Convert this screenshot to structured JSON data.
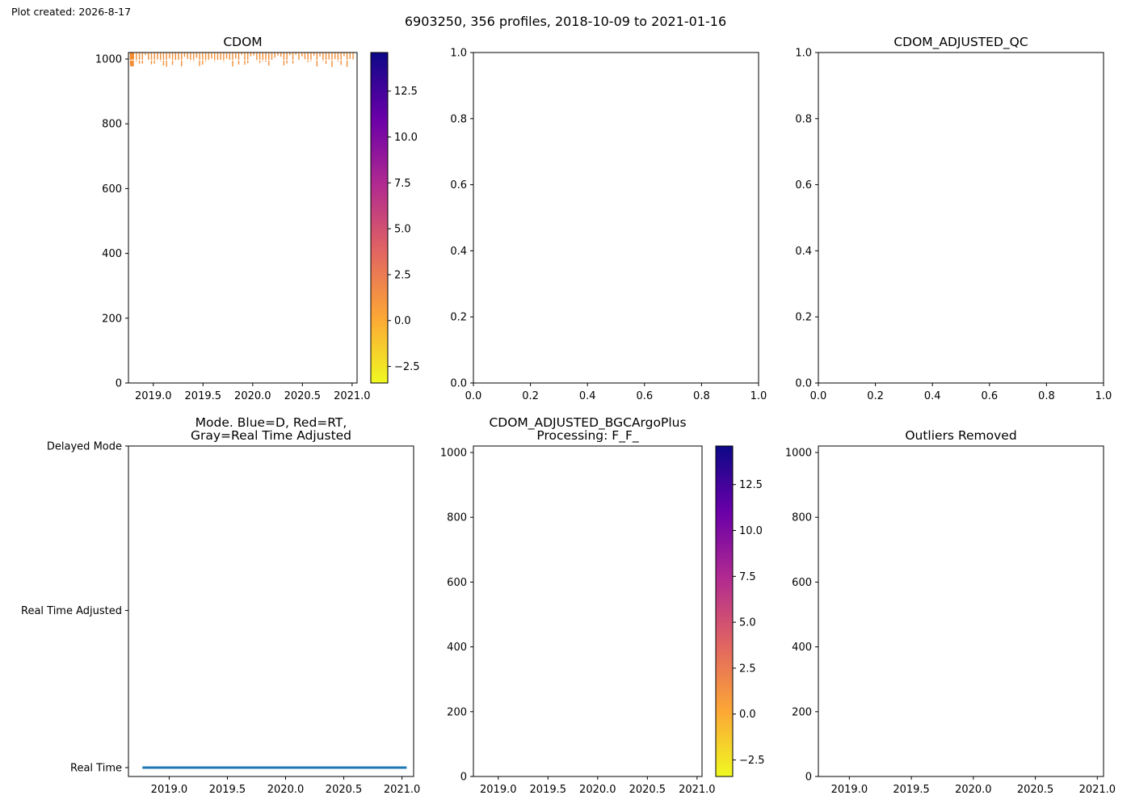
{
  "created": "Plot created: 2026-8-17",
  "suptitle": "6903250, 356 profiles, 2018-10-09 to 2021-01-16",
  "colormap": [
    "#f0f921",
    "#fca636",
    "#e16462",
    "#b12a90",
    "#6a00a8",
    "#0d0887"
  ],
  "cdom_color": "#f28d35",
  "chart_data": [
    {
      "type": "heatmap",
      "id": "cdom",
      "title": "CDOM",
      "xlim": [
        2018.75,
        2021.05
      ],
      "ylim": [
        1020,
        0
      ],
      "xticks": [
        "2019.0",
        "2019.5",
        "2020.0",
        "2020.5",
        "2021.0"
      ],
      "yticks": [
        "0",
        "200",
        "400",
        "600",
        "800",
        "1000"
      ],
      "colorbar": {
        "range": [
          -3.4,
          14.6
        ],
        "ticks": [
          "-2.5",
          "0.0",
          "2.5",
          "5.0",
          "7.5",
          "10.0",
          "12.5"
        ]
      },
      "profile_count": 356,
      "profile_dates": [
        2018.77,
        2021.04
      ],
      "value": 1.2
    },
    {
      "type": "line",
      "id": "empty",
      "title": "",
      "xlim": [
        0,
        1
      ],
      "ylim": [
        0,
        1
      ],
      "xticks": [
        "0.0",
        "0.2",
        "0.4",
        "0.6",
        "0.8",
        "1.0"
      ],
      "yticks": [
        "0.0",
        "0.2",
        "0.4",
        "0.6",
        "0.8",
        "1.0"
      ]
    },
    {
      "type": "line",
      "id": "qc",
      "title": "CDOM_ADJUSTED_QC",
      "xlim": [
        0,
        1
      ],
      "ylim": [
        0,
        1
      ],
      "xticks": [
        "0.0",
        "0.2",
        "0.4",
        "0.6",
        "0.8",
        "1.0"
      ],
      "yticks": [
        "0.0",
        "0.2",
        "0.4",
        "0.6",
        "0.8",
        "1.0"
      ]
    },
    {
      "type": "line",
      "id": "mode",
      "title": [
        "Mode. Blue=D, Red=RT,",
        "Gray=Real Time Adjusted"
      ],
      "xlim": [
        2018.65,
        2021.1
      ],
      "xticks": [
        "2019.0",
        "2019.5",
        "2020.0",
        "2020.5",
        "2021.0"
      ],
      "categories": [
        "Real Time",
        "Real Time Adjusted",
        "Delayed Mode"
      ],
      "series": [
        {
          "x": [
            2018.77,
            2021.04
          ],
          "y": [
            0,
            0
          ],
          "color": "#1f77b4"
        }
      ]
    },
    {
      "type": "heatmap",
      "id": "bgc",
      "title": [
        "CDOM_ADJUSTED_BGCArgoPlus",
        "Processing: F_F_"
      ],
      "xlim": [
        2018.75,
        2021.05
      ],
      "ylim": [
        1020,
        0
      ],
      "xticks": [
        "2019.0",
        "2019.5",
        "2020.0",
        "2020.5",
        "2021.0"
      ],
      "yticks": [
        "0",
        "200",
        "400",
        "600",
        "800",
        "1000"
      ],
      "colorbar": {
        "range": [
          -3.4,
          14.6
        ],
        "ticks": [
          "-2.5",
          "0.0",
          "2.5",
          "5.0",
          "7.5",
          "10.0",
          "12.5"
        ]
      }
    },
    {
      "type": "heatmap",
      "id": "outliers",
      "title": "Outliers Removed",
      "xlim": [
        2018.75,
        2021.05
      ],
      "ylim": [
        1020,
        0
      ],
      "xticks": [
        "2019.0",
        "2019.5",
        "2020.0",
        "2020.5",
        "2021.0"
      ],
      "yticks": [
        "0",
        "200",
        "400",
        "600",
        "800",
        "1000"
      ]
    }
  ]
}
